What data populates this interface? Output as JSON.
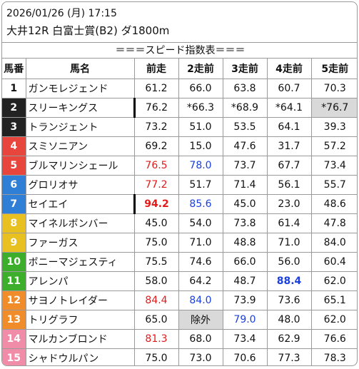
{
  "header": {
    "datetime": "2026/01/26 (月) 17:15",
    "race": "大井12R 白富士賞(B2) ダ1800m"
  },
  "table_title": "＝＝＝スピード指数表＝＝＝",
  "columns": [
    "馬番",
    "馬名",
    "前走",
    "2走前",
    "3走前",
    "4走前",
    "5走前"
  ],
  "colors": {
    "white_frame": "#ffffff",
    "black_frame": "#222222",
    "red_frame": "#e8453c",
    "blue_frame": "#2f7fd6",
    "yellow_frame": "#e8c020",
    "green_frame": "#3dae2b",
    "orange_frame": "#f08c2a",
    "pink_frame": "#f08ca8",
    "red_text": "#e21a1a",
    "blue_text": "#1a3fe0",
    "gray_cell": "#d9d9d9"
  },
  "rows": [
    {
      "num": "1",
      "frame": "#ffffff",
      "num_color": "#111111",
      "name": "ガンモレジェンド",
      "mark": false,
      "cells": [
        {
          "v": "61.2"
        },
        {
          "v": "66.0"
        },
        {
          "v": "63.8"
        },
        {
          "v": "60.7"
        },
        {
          "v": "70.3"
        }
      ]
    },
    {
      "num": "2",
      "frame": "#222222",
      "num_color": "#ffffff",
      "name": "スリーキングス",
      "mark": true,
      "cells": [
        {
          "v": "76.2"
        },
        {
          "v": "*66.3"
        },
        {
          "v": "*68.9"
        },
        {
          "v": "*64.1"
        },
        {
          "v": "*76.7",
          "style": "gray"
        }
      ]
    },
    {
      "num": "3",
      "frame": "#222222",
      "num_color": "#ffffff",
      "name": "トランジェント",
      "mark": false,
      "cells": [
        {
          "v": "73.2"
        },
        {
          "v": "51.0"
        },
        {
          "v": "53.5"
        },
        {
          "v": "64.1"
        },
        {
          "v": "39.3"
        }
      ]
    },
    {
      "num": "4",
      "frame": "#e8453c",
      "num_color": "#ffffff",
      "name": "スミソニアン",
      "mark": false,
      "cells": [
        {
          "v": "69.2"
        },
        {
          "v": "15.0"
        },
        {
          "v": "47.6"
        },
        {
          "v": "31.7"
        },
        {
          "v": "57.2"
        }
      ]
    },
    {
      "num": "5",
      "frame": "#e8453c",
      "num_color": "#ffffff",
      "name": "ブルマリンシェール",
      "mark": false,
      "cells": [
        {
          "v": "76.5",
          "style": "red"
        },
        {
          "v": "78.0",
          "style": "blue"
        },
        {
          "v": "73.7"
        },
        {
          "v": "67.7"
        },
        {
          "v": "73.4"
        }
      ]
    },
    {
      "num": "6",
      "frame": "#2f7fd6",
      "num_color": "#ffffff",
      "name": "グロリオサ",
      "mark": false,
      "cells": [
        {
          "v": "77.2",
          "style": "red"
        },
        {
          "v": "51.7"
        },
        {
          "v": "71.4"
        },
        {
          "v": "56.1"
        },
        {
          "v": "55.7"
        }
      ]
    },
    {
      "num": "7",
      "frame": "#2f7fd6",
      "num_color": "#ffffff",
      "name": "セイエイ",
      "mark": true,
      "cells": [
        {
          "v": "94.2",
          "style": "red bold"
        },
        {
          "v": "85.6",
          "style": "blue"
        },
        {
          "v": "45.0"
        },
        {
          "v": "23.0"
        },
        {
          "v": "48.6"
        }
      ]
    },
    {
      "num": "8",
      "frame": "#e8c020",
      "num_color": "#ffffff",
      "name": "マイネルボンバー",
      "mark": false,
      "cells": [
        {
          "v": "45.0"
        },
        {
          "v": "54.0"
        },
        {
          "v": "73.8"
        },
        {
          "v": "61.4"
        },
        {
          "v": "47.8"
        }
      ]
    },
    {
      "num": "9",
      "frame": "#e8c020",
      "num_color": "#ffffff",
      "name": "ファーガス",
      "mark": false,
      "cells": [
        {
          "v": "75.0"
        },
        {
          "v": "71.0"
        },
        {
          "v": "48.8"
        },
        {
          "v": "71.0"
        },
        {
          "v": "84.0"
        }
      ]
    },
    {
      "num": "10",
      "frame": "#3dae2b",
      "num_color": "#ffffff",
      "name": "ボニーマジェスティ",
      "mark": false,
      "cells": [
        {
          "v": "75.5"
        },
        {
          "v": "74.6"
        },
        {
          "v": "66.0"
        },
        {
          "v": "56.0"
        },
        {
          "v": "60.4"
        }
      ]
    },
    {
      "num": "11",
      "frame": "#3dae2b",
      "num_color": "#ffffff",
      "name": "アレンパ",
      "mark": false,
      "cells": [
        {
          "v": "58.0"
        },
        {
          "v": "64.2"
        },
        {
          "v": "48.7"
        },
        {
          "v": "88.4",
          "style": "blue bold"
        },
        {
          "v": "62.0"
        }
      ]
    },
    {
      "num": "12",
      "frame": "#f08c2a",
      "num_color": "#ffffff",
      "name": "サヨノトレイダー",
      "mark": false,
      "cells": [
        {
          "v": "84.4",
          "style": "red"
        },
        {
          "v": "84.0",
          "style": "blue"
        },
        {
          "v": "73.9"
        },
        {
          "v": "73.6"
        },
        {
          "v": "65.1"
        }
      ]
    },
    {
      "num": "13",
      "frame": "#f08c2a",
      "num_color": "#ffffff",
      "name": "トリグラフ",
      "mark": false,
      "cells": [
        {
          "v": "65.0"
        },
        {
          "v": "除外",
          "style": "gray"
        },
        {
          "v": "79.0",
          "style": "blue"
        },
        {
          "v": "48.0"
        },
        {
          "v": "62.0"
        }
      ]
    },
    {
      "num": "14",
      "frame": "#f08ca8",
      "num_color": "#ffffff",
      "name": "マルカンブロンド",
      "mark": false,
      "cells": [
        {
          "v": "81.3",
          "style": "red"
        },
        {
          "v": "68.0"
        },
        {
          "v": "73.4"
        },
        {
          "v": "62.9"
        },
        {
          "v": "76.6"
        }
      ]
    },
    {
      "num": "15",
      "frame": "#f08ca8",
      "num_color": "#ffffff",
      "name": "シャドウルパン",
      "mark": false,
      "cells": [
        {
          "v": "75.0"
        },
        {
          "v": "73.0"
        },
        {
          "v": "70.6"
        },
        {
          "v": "77.3"
        },
        {
          "v": "78.3"
        }
      ]
    }
  ]
}
